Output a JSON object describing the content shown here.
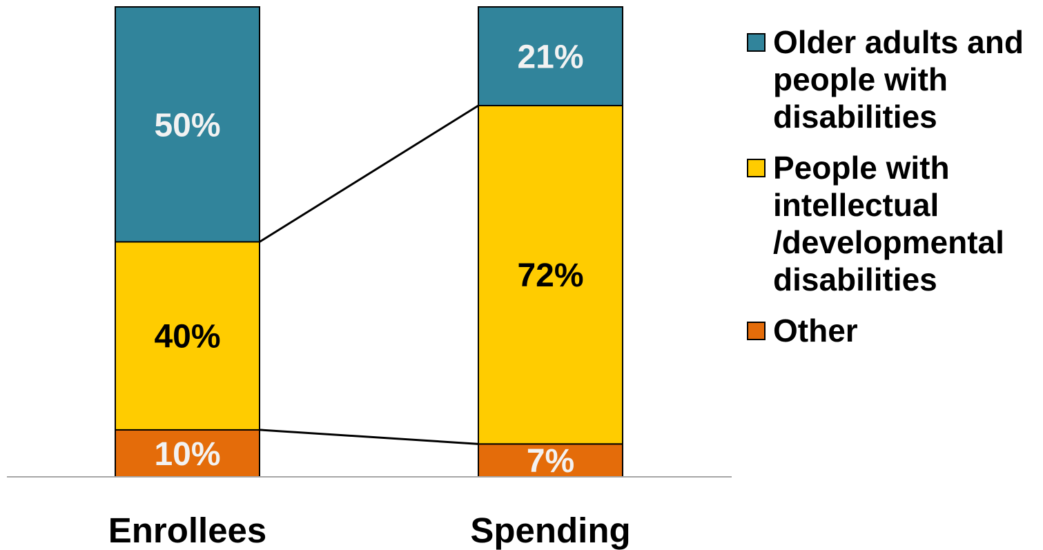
{
  "chart_data": {
    "type": "bar",
    "stacked": true,
    "normalized_percent": true,
    "categories": [
      "Enrollees",
      "Spending"
    ],
    "series": [
      {
        "name": "Other",
        "color": "#E46C0A",
        "values": [
          10,
          7
        ],
        "labels": [
          "10%",
          "7%"
        ],
        "label_color": "#F2F2F2"
      },
      {
        "name": "People with intellectual /developmental disabilities",
        "color": "#FFCC00",
        "values": [
          40,
          72
        ],
        "labels": [
          "40%",
          "72%"
        ],
        "label_color": "#000000"
      },
      {
        "name": "Older adults and people with disabilities",
        "color": "#31849B",
        "values": [
          50,
          21
        ],
        "labels": [
          "50%",
          "21%"
        ],
        "label_color": "#F2F2F2"
      }
    ],
    "legend_order": [
      2,
      1,
      0
    ],
    "legend_labels": [
      "Older adults and people with disabilities",
      "People with intellectual /developmental disabilities",
      "Other"
    ],
    "ylim": [
      0,
      100
    ],
    "connector_lines": true,
    "grid": false,
    "legend_position": "right",
    "xlabel": "",
    "ylabel": "",
    "title": ""
  }
}
